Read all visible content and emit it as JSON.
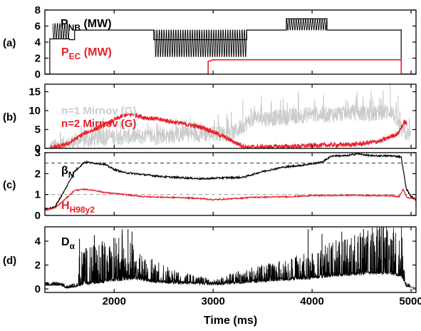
{
  "chart_data": [
    {
      "type": "line",
      "panel_label": "(a)",
      "xlim": [
        1300,
        5050
      ],
      "ylim": [
        0,
        8
      ],
      "y_ticks": [
        0,
        2,
        4,
        6,
        8
      ],
      "annotations": [
        {
          "main": "P",
          "sub": "NB",
          "rest": " (MW)",
          "color": "#000000"
        },
        {
          "main": "P",
          "sub": "EC",
          "rest": " (MW)",
          "color": "#e8202a"
        }
      ],
      "series": [
        {
          "color": "#000000",
          "points": [
            [
              1300,
              0
            ],
            [
              1350,
              0
            ],
            [
              1350,
              4.4
            ],
            [
              1550,
              4.4
            ],
            [
              1550,
              4.3
            ],
            [
              1600,
              4.3
            ],
            [
              1600,
              5.5
            ],
            [
              2400,
              5.5
            ],
            [
              2400,
              4.3
            ],
            [
              3340,
              4.3
            ],
            [
              3340,
              5.5
            ],
            [
              3740,
              5.5
            ],
            [
              3740,
              6.9
            ],
            [
              4150,
              6.9
            ],
            [
              4150,
              5.5
            ],
            [
              4900,
              5.5
            ],
            [
              4900,
              0
            ],
            [
              5050,
              0
            ]
          ],
          "modulated_segments": [
            {
              "x": [
                1380,
                1540
              ],
              "low": 4.4,
              "high": 6.3
            },
            {
              "x": [
                2410,
                3330
              ],
              "low": 2.2,
              "high": 5.5
            },
            {
              "x": [
                3745,
                4140
              ],
              "low": 5.5,
              "high": 6.9
            }
          ]
        },
        {
          "color": "#e8202a",
          "points": [
            [
              1300,
              0
            ],
            [
              2950,
              0
            ],
            [
              2950,
              1.6
            ],
            [
              3000,
              1.8
            ],
            [
              4900,
              1.8
            ],
            [
              4900,
              0
            ],
            [
              5050,
              0
            ]
          ]
        }
      ]
    },
    {
      "type": "line",
      "panel_label": "(b)",
      "xlim": [
        1300,
        5050
      ],
      "ylim": [
        0,
        17
      ],
      "y_ticks": [
        0,
        5,
        10,
        15
      ],
      "annotations": [
        {
          "main": "n=1 Mirnov (G)",
          "sub": "",
          "rest": "",
          "color": "#cccccc"
        },
        {
          "main": "n=2 Mirnov (G)",
          "sub": "",
          "rest": "",
          "color": "#e8202a"
        }
      ],
      "series": [
        {
          "color": "#cccccc",
          "points": [
            [
              1350,
              0.2
            ],
            [
              1500,
              1
            ],
            [
              1650,
              2
            ],
            [
              1800,
              2.5
            ],
            [
              1950,
              3
            ],
            [
              2100,
              3
            ],
            [
              2250,
              3.2
            ],
            [
              2400,
              3
            ],
            [
              2600,
              3.5
            ],
            [
              2800,
              3.8
            ],
            [
              3000,
              3.8
            ],
            [
              3200,
              4
            ],
            [
              3300,
              6
            ],
            [
              3400,
              8
            ],
            [
              3600,
              8
            ],
            [
              3800,
              8.5
            ],
            [
              4000,
              9
            ],
            [
              4200,
              9
            ],
            [
              4400,
              9.5
            ],
            [
              4600,
              9
            ],
            [
              4800,
              10
            ],
            [
              4900,
              5
            ],
            [
              5000,
              3
            ]
          ],
          "noise": 2.2,
          "spikes": [
            [
              2700,
              6
            ],
            [
              3300,
              13
            ],
            [
              3480,
              11
            ],
            [
              3860,
              15
            ],
            [
              4450,
              12
            ],
            [
              4560,
              11
            ],
            [
              4790,
              17
            ],
            [
              4870,
              14
            ]
          ]
        },
        {
          "color": "#e8202a",
          "points": [
            [
              1350,
              0.2
            ],
            [
              1450,
              0.5
            ],
            [
              1550,
              1.5
            ],
            [
              1700,
              4
            ],
            [
              1850,
              5.5
            ],
            [
              2000,
              7.5
            ],
            [
              2100,
              8.8
            ],
            [
              2200,
              9
            ],
            [
              2300,
              8.2
            ],
            [
              2500,
              7.5
            ],
            [
              2700,
              6.5
            ],
            [
              2900,
              5.5
            ],
            [
              3100,
              3.2
            ],
            [
              3250,
              1.2
            ],
            [
              3350,
              0.3
            ],
            [
              3500,
              0.4
            ],
            [
              3800,
              0.5
            ],
            [
              4000,
              0.8
            ],
            [
              4200,
              0.9
            ],
            [
              4400,
              1
            ],
            [
              4500,
              1.2
            ],
            [
              4600,
              1.6
            ],
            [
              4700,
              2
            ],
            [
              4800,
              3.2
            ],
            [
              4870,
              4
            ],
            [
              4930,
              7
            ],
            [
              4960,
              6.5
            ]
          ],
          "noise": 0.6,
          "spikes": []
        }
      ]
    },
    {
      "type": "line",
      "panel_label": "(c)",
      "xlim": [
        1300,
        5050
      ],
      "ylim": [
        0,
        3
      ],
      "y_ticks": [
        0,
        1,
        2,
        3
      ],
      "reference_lines": [
        2.5,
        1
      ],
      "annotations": [
        {
          "main": "β",
          "sub": "N",
          "rest": "",
          "color": "#000000"
        },
        {
          "main": "H",
          "sub": "H98y2",
          "rest": "",
          "color": "#e8202a"
        }
      ],
      "series": [
        {
          "color": "#000000",
          "points": [
            [
              1300,
              0.3
            ],
            [
              1400,
              0.4
            ],
            [
              1500,
              1.2
            ],
            [
              1600,
              2.1
            ],
            [
              1700,
              2.55
            ],
            [
              1800,
              2.5
            ],
            [
              1900,
              2.45
            ],
            [
              2000,
              2.2
            ],
            [
              2100,
              2.05
            ],
            [
              2300,
              1.95
            ],
            [
              2500,
              1.85
            ],
            [
              2700,
              1.8
            ],
            [
              2900,
              1.75
            ],
            [
              3100,
              1.8
            ],
            [
              3300,
              1.82
            ],
            [
              3500,
              2.1
            ],
            [
              3700,
              2.3
            ],
            [
              3900,
              2.4
            ],
            [
              4100,
              2.55
            ],
            [
              4200,
              2.85
            ],
            [
              4350,
              2.85
            ],
            [
              4450,
              2.95
            ],
            [
              4600,
              2.85
            ],
            [
              4800,
              2.85
            ],
            [
              4900,
              2.8
            ],
            [
              4950,
              1.3
            ],
            [
              5000,
              0.9
            ],
            [
              5050,
              0.75
            ]
          ],
          "noise": 0.04,
          "spikes": []
        },
        {
          "color": "#e8202a",
          "points": [
            [
              1300,
              0.25
            ],
            [
              1400,
              0.35
            ],
            [
              1500,
              0.75
            ],
            [
              1600,
              1.2
            ],
            [
              1700,
              1.25
            ],
            [
              1800,
              1.2
            ],
            [
              1900,
              1.1
            ],
            [
              2100,
              1.0
            ],
            [
              2300,
              0.9
            ],
            [
              2500,
              0.87
            ],
            [
              2700,
              0.85
            ],
            [
              2900,
              0.8
            ],
            [
              3000,
              0.75
            ],
            [
              3200,
              0.8
            ],
            [
              3400,
              0.87
            ],
            [
              3600,
              0.88
            ],
            [
              3800,
              0.9
            ],
            [
              4000,
              0.95
            ],
            [
              4200,
              0.95
            ],
            [
              4400,
              0.97
            ],
            [
              4600,
              0.95
            ],
            [
              4800,
              0.95
            ],
            [
              4880,
              0.9
            ],
            [
              4920,
              1.25
            ],
            [
              4960,
              0.85
            ],
            [
              5050,
              0.8
            ]
          ],
          "noise": 0.03,
          "spikes": []
        }
      ]
    },
    {
      "type": "line",
      "panel_label": "(d)",
      "xlim": [
        1300,
        5050
      ],
      "ylim": [
        -0.3,
        5.2
      ],
      "y_ticks": [
        0,
        2,
        4
      ],
      "x_ticks": [
        2000,
        3000,
        4000,
        5000
      ],
      "xlabel": "Time (ms)",
      "annotations": [
        {
          "main": "D",
          "sub": "α",
          "rest": "",
          "color": "#000000"
        }
      ],
      "series": [
        {
          "color": "#000000",
          "base_points": [
            [
              1300,
              0.3
            ],
            [
              1450,
              0.3
            ],
            [
              1520,
              0.05
            ],
            [
              1700,
              0.3
            ],
            [
              2000,
              0.6
            ],
            [
              2200,
              0.8
            ],
            [
              2400,
              0.5
            ],
            [
              2600,
              0.4
            ],
            [
              2800,
              0.35
            ],
            [
              3000,
              0.3
            ],
            [
              3200,
              0.35
            ],
            [
              3400,
              0.5
            ],
            [
              3600,
              0.6
            ],
            [
              3800,
              0.7
            ],
            [
              4000,
              0.8
            ],
            [
              4200,
              1
            ],
            [
              4400,
              1.1
            ],
            [
              4600,
              1.2
            ],
            [
              4800,
              1.2
            ],
            [
              4900,
              1.0
            ],
            [
              4950,
              0.2
            ],
            [
              5050,
              0.1
            ]
          ],
          "spike_density": [
            [
              1300,
              0
            ],
            [
              1620,
              0
            ],
            [
              1640,
              3
            ],
            [
              1900,
              3.5
            ],
            [
              2100,
              4
            ],
            [
              2200,
              3
            ],
            [
              2400,
              2
            ],
            [
              2600,
              1.2
            ],
            [
              3000,
              0.5
            ],
            [
              3200,
              1
            ],
            [
              3500,
              1.5
            ],
            [
              3800,
              2
            ],
            [
              4200,
              3
            ],
            [
              4600,
              4
            ],
            [
              4900,
              4.5
            ],
            [
              4950,
              0
            ]
          ],
          "tall_spikes": [
            [
              1650,
              4.2
            ],
            [
              1800,
              4.5
            ],
            [
              1880,
              4.0
            ],
            [
              2080,
              5.0
            ],
            [
              2140,
              5.0
            ],
            [
              2180,
              4.8
            ],
            [
              3960,
              5.0
            ],
            [
              4100,
              4.6
            ],
            [
              4300,
              4.8
            ],
            [
              4430,
              4.5
            ],
            [
              4520,
              5.0
            ],
            [
              4650,
              4.4
            ],
            [
              4760,
              4.9
            ],
            [
              4820,
              4.7
            ]
          ]
        }
      ]
    }
  ]
}
